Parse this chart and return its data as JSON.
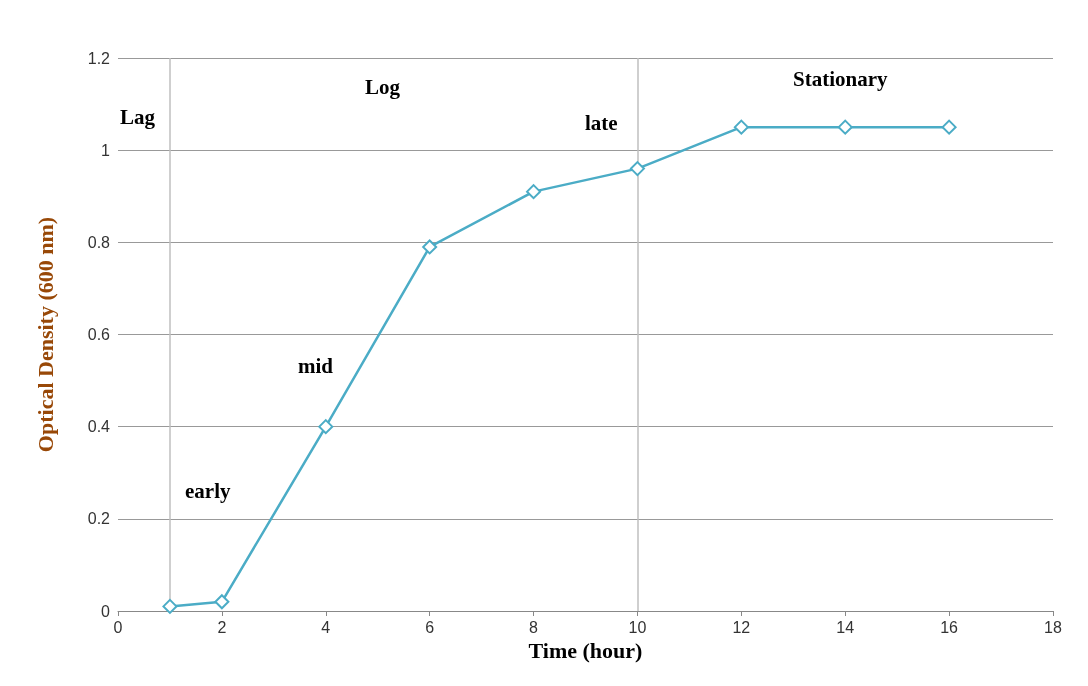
{
  "chart_data": {
    "type": "line",
    "xlabel": "Time (hour)",
    "ylabel": "Optical Density (600 nm)",
    "x": [
      1,
      2,
      4,
      6,
      8,
      10,
      12,
      14,
      16
    ],
    "series": [
      {
        "color": "#4bacc6",
        "values": [
          0.01,
          0.02,
          0.4,
          0.79,
          0.91,
          0.96,
          1.05,
          1.05,
          1.05
        ]
      }
    ],
    "xlim": [
      0,
      18
    ],
    "xticks": [
      0,
      2,
      4,
      6,
      8,
      10,
      12,
      14,
      16,
      18
    ],
    "ylim": [
      0,
      1.2
    ],
    "yticks": [
      0,
      0.2,
      0.4,
      0.6,
      0.8,
      1,
      1.2
    ],
    "grid": "y",
    "marker": "diamond",
    "line_style": "solid",
    "ref_lines": [
      {
        "axis": "x",
        "value": 1,
        "color": "#bfbfbf"
      },
      {
        "axis": "x",
        "value": 10,
        "color": "#bfbfbf"
      }
    ],
    "annotations": [
      "Lag",
      "Log",
      "Stationary",
      "early",
      "mid",
      "late"
    ]
  }
}
